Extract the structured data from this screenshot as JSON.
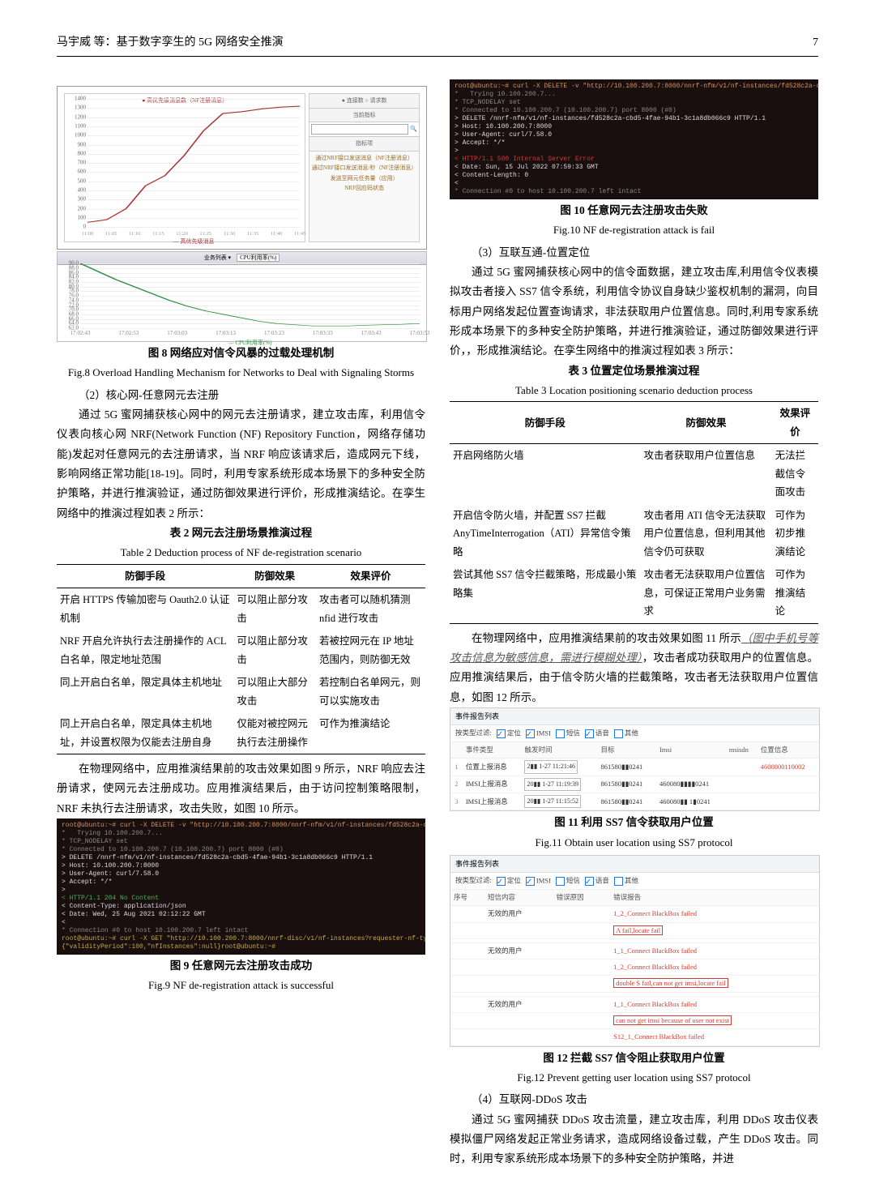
{
  "page": {
    "running_head": "马宇威 等：基于数字孪生的 5G 网络安全推演",
    "page_number": "7"
  },
  "chart8": {
    "title_marker": "● 高优先级消息数（NF注册消息）",
    "right_title1": "● 连接数  ○ 请求数",
    "right_title2": "当前指标",
    "search_placeholder": "",
    "side_header": "指标项",
    "side_items": [
      "通过NRF接口发送消息（NF注册消息）",
      "通过NRF接口发送消息/秒（NF注册消息）",
      "发送至网元任务量（应用）",
      "NRF回应码状态"
    ],
    "ylim": [
      0,
      1400
    ],
    "ytick_step": 100,
    "grid_color": "#eeeeee",
    "series": {
      "color": "#aa3333",
      "points_y": [
        50,
        80,
        200,
        450,
        560,
        780,
        1050,
        1240,
        1260,
        1290,
        1310,
        1320
      ]
    },
    "x_labels": [
      "11:00",
      "11:05",
      "11:10",
      "11:15",
      "11:20",
      "11:25",
      "11:30",
      "11:35",
      "11:40",
      "11:45"
    ],
    "legend_text": "— 高优先级消息"
  },
  "cpu_chart": {
    "head_left": "业务列表 ▾",
    "head_drop": "CPU利用率(%)",
    "ylim": [
      62,
      90
    ],
    "ytick_step": 2,
    "series_color": "#2f8f3f",
    "points_y": [
      90,
      86.5,
      83,
      80,
      77,
      74,
      71.5,
      69.5,
      68,
      66.5,
      65,
      64,
      63.5,
      63,
      63,
      63,
      63.3,
      63.5,
      63.7,
      64
    ],
    "x_labels": [
      "17:02:43",
      "17:02:53",
      "17:03:03",
      "17:03:13",
      "17:03:23",
      "17:03:33",
      "17:03:43",
      "17:03:53"
    ],
    "legend": "— CPU利用率(%)"
  },
  "fig8": {
    "cn": "图 8  网络应对信令风暴的过载处理机制",
    "en": "Fig.8 Overload Handling Mechanism for Networks to Deal with Signaling Storms"
  },
  "sec2_2": "（2）核心网-任意网元去注册",
  "para1": "通过 5G 蜜网捕获核心网中的网元去注册请求，建立攻击库，利用信令仪表向核心网 NRF(Network Function (NF) Repository Function，网络存储功能)发起对任意网元的去注册请求，当 NRF 响应该请求后，造成网元下线，影响网络正常功能[18-19]。同时，利用专家系统形成本场景下的多种安全防护策略，并进行推演验证，通过防御效果进行评价，形成推演结论。在孪生网络中的推演过程如表 2 所示：",
  "table2": {
    "title_cn": "表 2  网元去注册场景推演过程",
    "title_en": "Table 2 Deduction process of NF de-registration scenario",
    "columns": [
      "防御手段",
      "防御效果",
      "效果评价"
    ],
    "rows": [
      [
        "开启 HTTPS 传输加密与 Oauth2.0 认证机制",
        "可以阻止部分攻击",
        "攻击者可以随机猜测 nfid 进行攻击"
      ],
      [
        "NRF 开启允许执行去注册操作的 ACL 白名单，限定地址范围",
        "可以阻止部分攻击",
        "若被控网元在 IP 地址范围内，则防御无效"
      ],
      [
        "同上开启白名单，限定具体主机地址",
        "可以阻止大部分攻击",
        "若控制白名单网元，则可以实施攻击"
      ],
      [
        "同上开启白名单，限定具体主机地址，并设置权限为仅能去注册自身",
        "仅能对被控网元执行去注册操作",
        "可作为推演结论"
      ]
    ]
  },
  "para2": "在物理网络中，应用推演结果前的攻击效果如图 9 所示，NRF 响应去注册请求，使网元去注册成功。应用推演结果后，由于访问控制策略限制，NRF 未执行去注册请求，攻击失败，如图 10 所示。",
  "term9": {
    "lines": [
      {
        "cls": "orange",
        "text": "root@ubuntu:~# curl -X DELETE -v \"http://10.100.200.7:8000/nnrf-nfm/v1/nf-instances/fd528c2a-cbd5-4fae-94b1-3c1a8db066c9\""
      },
      {
        "cls": "grey",
        "text": "*   Trying 10.100.200.7..."
      },
      {
        "cls": "grey",
        "text": "* TCP_NODELAY set"
      },
      {
        "cls": "grey",
        "text": "* Connected to 10.100.200.7 (10.100.200.7) port 8000 (#0)"
      },
      {
        "cls": "white",
        "text": "> DELETE /nnrf-nfm/v1/nf-instances/fd528c2a-cbd5-4fae-94b1-3c1a8db066c9 HTTP/1.1"
      },
      {
        "cls": "white",
        "text": "> Host: 10.100.200.7:8000"
      },
      {
        "cls": "white",
        "text": "> User-Agent: curl/7.58.0"
      },
      {
        "cls": "white",
        "text": "> Accept: */*"
      },
      {
        "cls": "white",
        "text": ">"
      },
      {
        "cls": "green",
        "text": "< HTTP/1.1 204 No Content"
      },
      {
        "cls": "white",
        "text": "< Content-Type: application/json"
      },
      {
        "cls": "white",
        "text": "< Date: Wed, 25 Aug 2021 02:12:22 GMT"
      },
      {
        "cls": "white",
        "text": "<"
      },
      {
        "cls": "grey",
        "text": "* Connection #0 to host 10.100.200.7 left intact"
      },
      {
        "cls": "yellow",
        "text": "root@ubuntu:~# curl -X GET \"http://10.100.200.7:8000/nnrf-disc/v1/nf-instances?requester-nf-type=AMF&target-nf-type=AUSF\""
      },
      {
        "cls": "yellow",
        "text": "{\"validityPeriod\":100,\"nfInstances\":null}root@ubuntu:~#"
      }
    ]
  },
  "fig9": {
    "cn": "图 9  任意网元去注册攻击成功",
    "en": "Fig.9 NF de-registration attack is successful"
  },
  "term10": {
    "lines": [
      {
        "cls": "orange",
        "text": "root@ubuntu:~# curl -X DELETE -v \"http://10.100.200.7:8000/nnrf-nfm/v1/nf-instances/fd528c2a-cbd5-4fae-94b1-3c1a8db066c9\""
      },
      {
        "cls": "grey",
        "text": "*   Trying 10.100.200.7..."
      },
      {
        "cls": "grey",
        "text": "* TCP_NODELAY set"
      },
      {
        "cls": "grey",
        "text": "* Connected to 10.100.200.7 (10.100.200.7) port 8000 (#0)"
      },
      {
        "cls": "white",
        "text": "> DELETE /nnrf-nfm/v1/nf-instances/fd528c2a-cbd5-4fae-94b1-3c1a8db066c9 HTTP/1.1"
      },
      {
        "cls": "white",
        "text": "> Host: 10.100.200.7:8000"
      },
      {
        "cls": "white",
        "text": "> User-Agent: curl/7.58.0"
      },
      {
        "cls": "white",
        "text": "> Accept: */*"
      },
      {
        "cls": "white",
        "text": ">"
      },
      {
        "cls": "red",
        "text": "< HTTP/1.1 500 Internal Server Error"
      },
      {
        "cls": "white",
        "text": "< Date: Sun, 15 Jul 2022 07:59:33 GMT"
      },
      {
        "cls": "white",
        "text": "< Content-Length: 0"
      },
      {
        "cls": "white",
        "text": "<"
      },
      {
        "cls": "grey",
        "text": "* Connection #0 to host 10.100.200.7 left intact"
      }
    ]
  },
  "fig10": {
    "cn": "图 10  任意网元去注册攻击失败",
    "en": "Fig.10 NF de-registration attack is fail"
  },
  "sec2_3": "（3）互联互通-位置定位",
  "para3": "通过 5G 蜜网捕获核心网中的信令面数据，建立攻击库,利用信令仪表模拟攻击者接入 SS7 信令系统，利用信令协议自身缺少鉴权机制的漏洞，向目标用户网络发起位置查询请求，非法获取用户位置信息。同时,利用专家系统形成本场景下的多种安全防护策略，并进行推演验证，通过防御效果进行评价，，形成推演结论。在孪生网络中的推演过程如表 3 所示：",
  "table3": {
    "title_cn": "表 3  位置定位场景推演过程",
    "title_en": "Table 3 Location positioning scenario deduction process",
    "columns": [
      "防御手段",
      "防御效果",
      "效果评价"
    ],
    "rows": [
      [
        "开启网络防火墙",
        "攻击者获取用户位置信息",
        "无法拦截信令面攻击"
      ],
      [
        "开启信令防火墙，并配置 SS7 拦截 AnyTimeInterrogation（ATI）异常信令策略",
        "攻击者用 ATI 信令无法获取用户位置信息，但利用其他信令仍可获取",
        "可作为初步推演结论"
      ],
      [
        "尝试其他 SS7 信令拦截策略，形成最小策略集",
        "攻击者无法获取用户位置信息，可保证正常用户业务需求",
        "可作为推演结论"
      ]
    ]
  },
  "para4a": "在物理网络中，应用推演结果前的攻击效果如图 11 所示",
  "para4b": "（图中手机号等攻击信息为敏感信息，需进行模糊处理）",
  "para4c": "，攻击者成功获取用户的位置信息。应用推演结果后，由于信令防火墙的拦截策略，攻击者无法获取用户位置信息，如图 12 所示。",
  "fig11report": {
    "head": "事件报告列表",
    "filter_label": "按类型过滤:",
    "filters": [
      {
        "label": "定位",
        "on": true
      },
      {
        "label": "IMSI",
        "on": true
      },
      {
        "label": "短信",
        "on": false
      },
      {
        "label": "语音",
        "on": true
      },
      {
        "label": "其他",
        "on": false
      }
    ],
    "columns": [
      "",
      "事件类型",
      "触发时间",
      "目标",
      "Imsi",
      "msisdn",
      "位置信息"
    ],
    "rows": [
      [
        "1",
        "位置上报消息",
        "2▮▮ 1-27 11:21:46",
        "861580▮▮0241",
        "",
        "",
        "4600800110002"
      ],
      [
        "2",
        "IMSI上报消息",
        "20▮▮ 1-27 11:19:39",
        "861580▮▮0241",
        "460080▮▮▮▮0241",
        "",
        ""
      ],
      [
        "3",
        "IMSI上报消息",
        "20▮▮ 1-27 11:15:52",
        "861580▮▮0241",
        "460080▮▮ 1▮0241",
        "",
        ""
      ]
    ],
    "highlight_col": 6,
    "date_col": 2
  },
  "fig11": {
    "cn": "图 11  利用 SS7 信令获取用户位置",
    "en": "Fig.11 Obtain user location using SS7 protocol"
  },
  "fig12report": {
    "head": "事件报告列表",
    "filter_label": "按类型过滤:",
    "filters": [
      {
        "label": "定位",
        "on": true
      },
      {
        "label": "IMSI",
        "on": true
      },
      {
        "label": "短信",
        "on": false
      },
      {
        "label": "语音",
        "on": true
      },
      {
        "label": "其他",
        "on": false
      }
    ],
    "columns": [
      "序号",
      "短信内容",
      "错误原因",
      "错误报告"
    ],
    "rows": [
      [
        "",
        "无效的用户",
        "",
        "1_2_Connect BlackBox failed"
      ],
      [
        "",
        "",
        "",
        "A fail,locate fail"
      ],
      [
        "",
        "",
        "",
        ""
      ],
      [
        "",
        "无效的用户",
        "",
        "1_1_Connect BlackBox failed"
      ],
      [
        "",
        "",
        "",
        "1_2_Connect BlackBox failed"
      ],
      [
        "",
        "",
        "",
        "double S fail,can not get imsi,locate fail"
      ],
      [
        "",
        "",
        "",
        ""
      ],
      [
        "",
        "无效的用户",
        "",
        "1_1_Connect BlackBox failed"
      ],
      [
        "",
        "",
        "",
        "can not get imsi because of user not exist"
      ],
      [
        "",
        "",
        "",
        "S12_1_Connect BlackBox failed"
      ]
    ],
    "red_rows": [
      0,
      1,
      3,
      4,
      5,
      7,
      8,
      9
    ],
    "box_rows": [
      1,
      5,
      8
    ]
  },
  "fig12": {
    "cn": "图 12  拦截 SS7 信令阻止获取用户位置",
    "en": "Fig.12 Prevent getting user location using SS7 protocol"
  },
  "sec2_4": "（4）互联网-DDoS 攻击",
  "para5": "通过 5G 蜜网捕获 DDoS 攻击流量，建立攻击库，利用 DDoS 攻击仪表模拟僵尸网络发起正常业务请求，造成网络设备过载，产生 DDoS 攻击。同时，利用专家系统形成本场景下的多种安全防护策略，并进"
}
